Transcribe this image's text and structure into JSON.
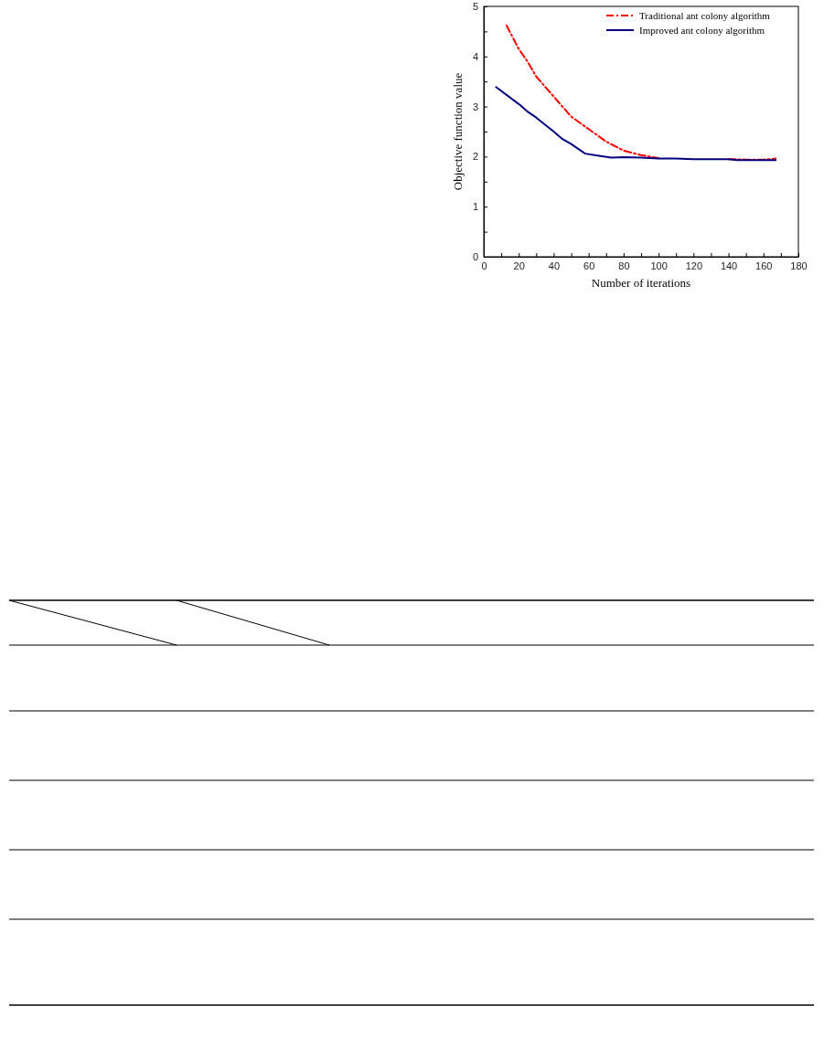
{
  "chart_data": {
    "type": "line",
    "xlabel": "Number of iterations",
    "ylabel": "Objective function value",
    "xlim": [
      0,
      180
    ],
    "ylim": [
      0,
      5
    ],
    "xticks": [
      0,
      {
        "value": 10,
        "label": null
      },
      20,
      {
        "value": 30,
        "label": null
      },
      40,
      {
        "value": 50,
        "label": null
      },
      60,
      {
        "value": 70,
        "label": null
      },
      80,
      {
        "value": 90,
        "label": null
      },
      100,
      {
        "value": 110,
        "label": null
      },
      120,
      {
        "value": 130,
        "label": null
      },
      140,
      {
        "value": 150,
        "label": null
      },
      160,
      {
        "value": 170,
        "label": null
      },
      180
    ],
    "yticks": [
      0,
      {
        "value": 0.5,
        "label": null
      },
      1,
      {
        "value": 1.5,
        "label": null
      },
      2,
      {
        "value": 2.5,
        "label": null
      },
      3,
      {
        "value": 3.5,
        "label": null
      },
      4,
      {
        "value": 4.5,
        "label": null
      },
      5
    ],
    "grid": false,
    "legend": "top right",
    "series": [
      {
        "name": "Traditional ant colony algorithm",
        "color": "#ff0000",
        "line_style": "dashdot",
        "x": [
          13,
          20,
          25,
          30,
          40,
          50,
          60,
          70,
          80,
          90,
          100,
          110,
          120,
          130,
          140,
          150,
          160,
          167
        ],
        "values": [
          4.62,
          4.15,
          3.9,
          3.6,
          3.2,
          2.8,
          2.55,
          2.3,
          2.12,
          2.03,
          1.97,
          null,
          null,
          null,
          1.95,
          1.94,
          1.94,
          1.96
        ]
      },
      {
        "name": "Improved ant colony algorithm",
        "color": "#000080",
        "line_style": "solid",
        "x": [
          7,
          20,
          25,
          30,
          40,
          45,
          50,
          58,
          65,
          73,
          80,
          90,
          100,
          110,
          120,
          140,
          145,
          167
        ],
        "values": [
          3.39,
          3.05,
          2.9,
          2.78,
          2.5,
          2.35,
          2.25,
          2.06,
          2.02,
          1.98,
          1.99,
          1.98,
          1.96,
          1.96,
          1.95,
          1.95,
          1.93,
          1.93
        ]
      }
    ]
  }
}
